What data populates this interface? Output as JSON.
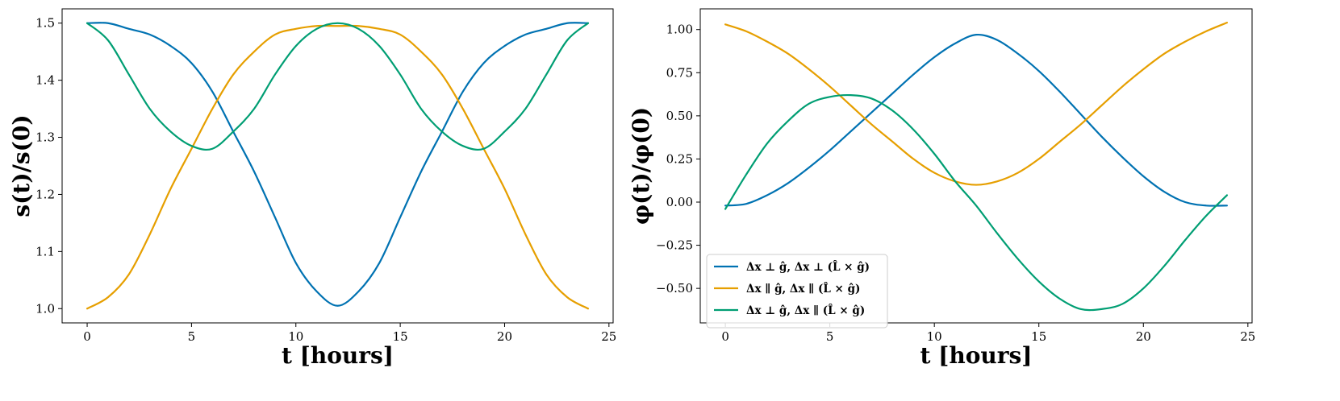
{
  "chart_data": [
    {
      "type": "line",
      "xlabel": "t [hours]",
      "ylabel": "s(t)/s(0)",
      "xlim": [
        -1.2,
        25.2
      ],
      "ylim": [
        0.975,
        1.525
      ],
      "xticks": [
        0,
        5,
        10,
        15,
        20,
        25
      ],
      "xtick_labels": [
        "0",
        "5",
        "10",
        "15",
        "20",
        "25"
      ],
      "yticks": [
        1.0,
        1.1,
        1.2,
        1.3,
        1.4,
        1.5
      ],
      "ytick_labels": [
        "1.0",
        "1.1",
        "1.2",
        "1.3",
        "1.4",
        "1.5"
      ],
      "grid": false,
      "series": [
        {
          "color": "#0072b2",
          "x": [
            0,
            1,
            2,
            3,
            4,
            5,
            6,
            7,
            8,
            9,
            10,
            11,
            12,
            13,
            14,
            15,
            16,
            17,
            18,
            19,
            20,
            21,
            22,
            23,
            24
          ],
          "y": [
            1.5,
            1.5,
            1.49,
            1.48,
            1.46,
            1.43,
            1.38,
            1.31,
            1.24,
            1.16,
            1.08,
            1.03,
            1.005,
            1.03,
            1.08,
            1.16,
            1.24,
            1.31,
            1.38,
            1.43,
            1.46,
            1.48,
            1.49,
            1.5,
            1.5
          ]
        },
        {
          "color": "#e69f00",
          "x": [
            0,
            1,
            2,
            3,
            4,
            5,
            6,
            7,
            8,
            9,
            10,
            11,
            12,
            13,
            14,
            15,
            16,
            17,
            18,
            19,
            20,
            21,
            22,
            23,
            24
          ],
          "y": [
            1.0,
            1.02,
            1.06,
            1.13,
            1.21,
            1.28,
            1.35,
            1.41,
            1.45,
            1.48,
            1.49,
            1.495,
            1.495,
            1.495,
            1.49,
            1.48,
            1.45,
            1.41,
            1.35,
            1.28,
            1.21,
            1.13,
            1.06,
            1.02,
            1.0
          ]
        },
        {
          "color": "#009e73",
          "x": [
            0,
            1,
            2,
            3,
            4,
            5,
            6,
            7,
            8,
            9,
            10,
            11,
            12,
            13,
            14,
            15,
            16,
            17,
            18,
            19,
            20,
            21,
            22,
            23,
            24
          ],
          "y": [
            1.5,
            1.47,
            1.41,
            1.35,
            1.31,
            1.285,
            1.28,
            1.31,
            1.35,
            1.41,
            1.46,
            1.49,
            1.5,
            1.49,
            1.46,
            1.41,
            1.35,
            1.31,
            1.285,
            1.28,
            1.31,
            1.35,
            1.41,
            1.47,
            1.5
          ]
        }
      ]
    },
    {
      "type": "line",
      "xlabel": "t [hours]",
      "ylabel": "φ(t)/φ(0)",
      "xlim": [
        -1.2,
        25.2
      ],
      "ylim": [
        -0.7,
        1.12
      ],
      "xticks": [
        0,
        5,
        10,
        15,
        20,
        25
      ],
      "xtick_labels": [
        "0",
        "5",
        "10",
        "15",
        "20",
        "25"
      ],
      "yticks": [
        -0.5,
        -0.25,
        0.0,
        0.25,
        0.5,
        0.75,
        1.0
      ],
      "ytick_labels": [
        "−0.50",
        "−0.25",
        "0.00",
        "0.25",
        "0.50",
        "0.75",
        "1.00"
      ],
      "grid": false,
      "legend_position": "lower-left",
      "series": [
        {
          "name": "Δx ⊥ ĝ, Δx ⊥ (L̂ × ĝ)",
          "color": "#0072b2",
          "x": [
            0,
            1,
            2,
            3,
            4,
            5,
            6,
            7,
            8,
            9,
            10,
            11,
            12,
            13,
            14,
            15,
            16,
            17,
            18,
            19,
            20,
            21,
            22,
            23,
            24
          ],
          "y": [
            -0.02,
            -0.01,
            0.04,
            0.11,
            0.2,
            0.3,
            0.41,
            0.52,
            0.63,
            0.74,
            0.84,
            0.92,
            0.97,
            0.94,
            0.86,
            0.76,
            0.64,
            0.51,
            0.38,
            0.26,
            0.15,
            0.06,
            0.0,
            -0.02,
            -0.02
          ]
        },
        {
          "name": "Δx ∥ ĝ, Δx ∥ (L̂ × ĝ)",
          "color": "#e69f00",
          "x": [
            0,
            1,
            2,
            3,
            4,
            5,
            6,
            7,
            8,
            9,
            10,
            11,
            12,
            13,
            14,
            15,
            16,
            17,
            18,
            19,
            20,
            21,
            22,
            23,
            24
          ],
          "y": [
            1.03,
            0.99,
            0.93,
            0.86,
            0.77,
            0.67,
            0.56,
            0.45,
            0.35,
            0.25,
            0.17,
            0.12,
            0.1,
            0.12,
            0.17,
            0.25,
            0.35,
            0.45,
            0.56,
            0.67,
            0.77,
            0.86,
            0.93,
            0.99,
            1.04
          ]
        },
        {
          "name": "Δx ⊥ ĝ, Δx ∥ (L̂ × ĝ)",
          "color": "#009e73",
          "x": [
            0,
            1,
            2,
            3,
            4,
            5,
            6,
            7,
            8,
            9,
            10,
            11,
            12,
            13,
            14,
            15,
            16,
            17,
            18,
            19,
            20,
            21,
            22,
            23,
            24
          ],
          "y": [
            -0.04,
            0.16,
            0.34,
            0.47,
            0.57,
            0.61,
            0.62,
            0.6,
            0.53,
            0.42,
            0.28,
            0.12,
            -0.02,
            -0.18,
            -0.33,
            -0.46,
            -0.56,
            -0.62,
            -0.62,
            -0.59,
            -0.5,
            -0.37,
            -0.22,
            -0.08,
            0.04
          ]
        }
      ]
    }
  ]
}
